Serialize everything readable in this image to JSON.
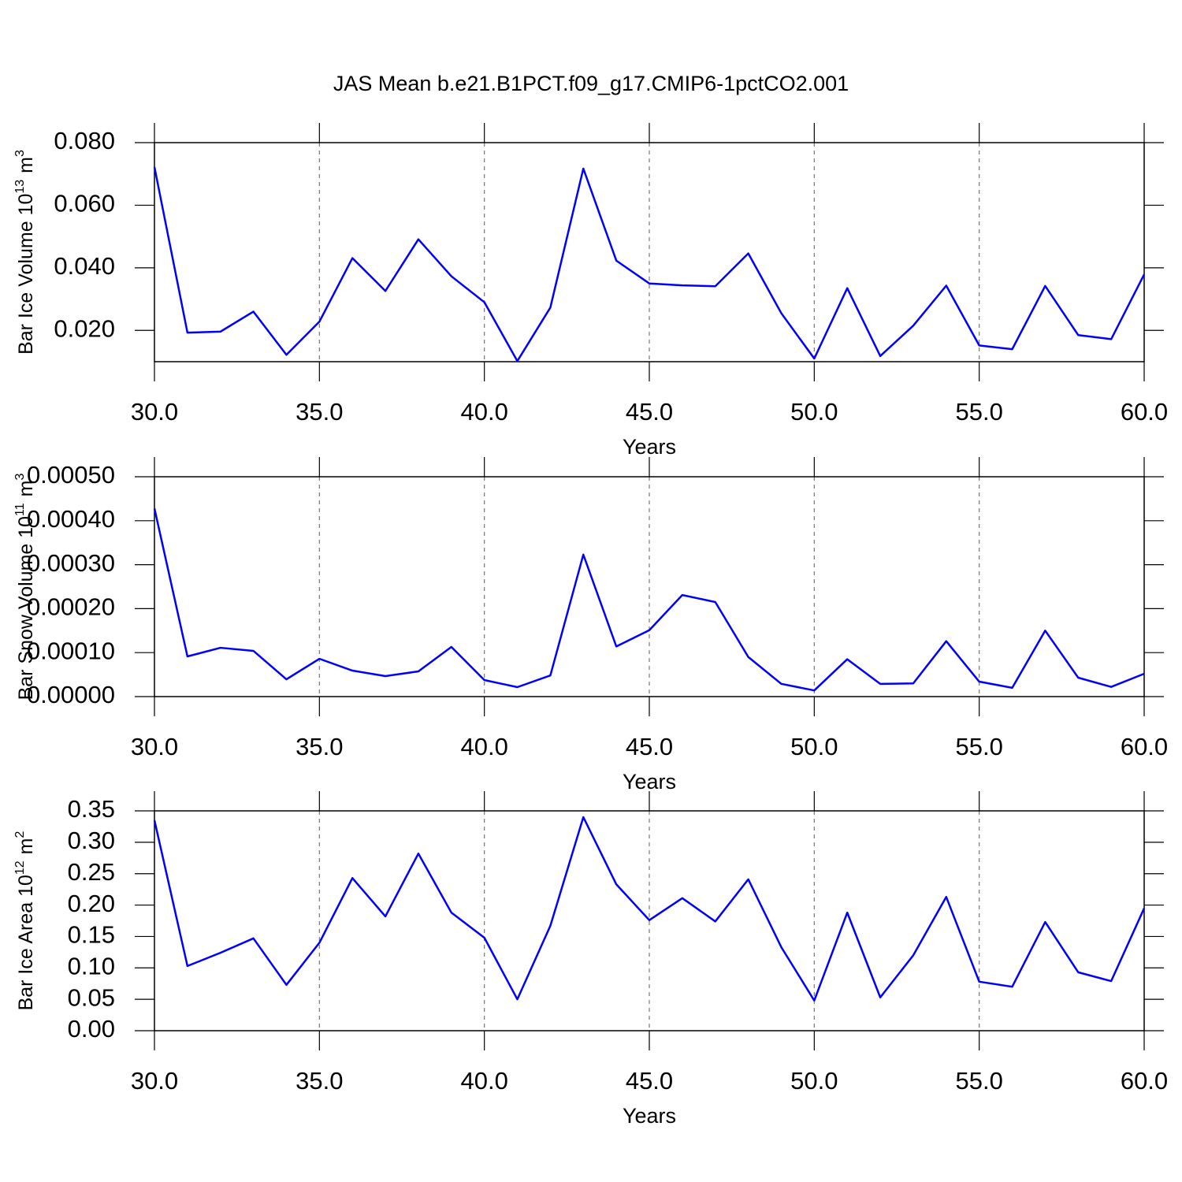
{
  "chart_data": [
    {
      "type": "line",
      "title": "JAS Mean b.e21.B1PCT.f09_g17.CMIP6-1pctCO2.001",
      "ylabel": {
        "text": "Bar Ice Volume 10",
        "exp": "13",
        "unit": "m",
        "unit_exp": "3"
      },
      "xlabel": "Years",
      "x": [
        30,
        31,
        32,
        33,
        34,
        35,
        36,
        37,
        38,
        39,
        40,
        41,
        42,
        43,
        44,
        45,
        46,
        47,
        48,
        49,
        50,
        51,
        52,
        53,
        54,
        55,
        56,
        57,
        58,
        59,
        60
      ],
      "series": [
        {
          "color": "#0000ff",
          "values": [
            0.0722,
            0.0193,
            0.0196,
            0.026,
            0.0122,
            0.0228,
            0.0431,
            0.0326,
            0.0491,
            0.0373,
            0.029,
            0.0102,
            0.0273,
            0.0717,
            0.0423,
            0.035,
            0.0344,
            0.0341,
            0.0446,
            0.0255,
            0.011,
            0.0335,
            0.0118,
            0.0215,
            0.0343,
            0.0152,
            0.014,
            0.0342,
            0.0185,
            0.0172,
            0.0379
          ]
        }
      ],
      "xlim": [
        30,
        60
      ],
      "xticks": [
        {
          "value": 30,
          "label": "30.0"
        },
        {
          "value": 35,
          "label": "35.0"
        },
        {
          "value": 40,
          "label": "40.0"
        },
        {
          "value": 45,
          "label": "45.0"
        },
        {
          "value": 50,
          "label": "50.0"
        },
        {
          "value": 55,
          "label": "55.0"
        },
        {
          "value": 60,
          "label": "60.0"
        }
      ],
      "ylim": [
        0.01,
        0.08
      ],
      "yticks": [
        {
          "value": 0.02,
          "label": "0.020"
        },
        {
          "value": 0.04,
          "label": "0.040"
        },
        {
          "value": 0.06,
          "label": "0.060"
        },
        {
          "value": 0.08,
          "label": "0.080"
        }
      ],
      "grid": "x-dashed"
    },
    {
      "type": "line",
      "ylabel": {
        "text": "Bar Snow Volume 10",
        "exp": "11",
        "unit": "m",
        "unit_exp": "3"
      },
      "xlabel": "Years",
      "x": [
        30,
        31,
        32,
        33,
        34,
        35,
        36,
        37,
        38,
        39,
        40,
        41,
        42,
        43,
        44,
        45,
        46,
        47,
        48,
        49,
        50,
        51,
        52,
        53,
        54,
        55,
        56,
        57,
        58,
        59,
        60
      ],
      "series": [
        {
          "color": "#0000ff",
          "values": [
            0.000428,
            9.14e-05,
            0.000111,
            0.000104,
            3.94e-05,
            8.6e-05,
            5.91e-05,
            4.66e-05,
            5.73e-05,
            0.000113,
            3.76e-05,
            2.15e-05,
            4.8e-05,
            0.000323,
            0.000114,
            0.000151,
            0.000231,
            0.000215,
            9e-05,
            2.9e-05,
            1.4e-05,
            8.5e-05,
            2.9e-05,
            3e-05,
            0.000126,
            3.4e-05,
            2e-05,
            0.00015,
            4.3e-05,
            2.2e-05,
            5.2e-05
          ]
        }
      ],
      "xlim": [
        30,
        60
      ],
      "xticks": [
        {
          "value": 30,
          "label": "30.0"
        },
        {
          "value": 35,
          "label": "35.0"
        },
        {
          "value": 40,
          "label": "40.0"
        },
        {
          "value": 45,
          "label": "45.0"
        },
        {
          "value": 50,
          "label": "50.0"
        },
        {
          "value": 55,
          "label": "55.0"
        },
        {
          "value": 60,
          "label": "60.0"
        }
      ],
      "ylim": [
        0,
        0.0005
      ],
      "yticks": [
        {
          "value": 0,
          "label": "0.00000"
        },
        {
          "value": 0.0001,
          "label": "0.00010"
        },
        {
          "value": 0.0002,
          "label": "0.00020"
        },
        {
          "value": 0.0003,
          "label": "0.00030"
        },
        {
          "value": 0.0004,
          "label": "0.00040"
        },
        {
          "value": 0.0005,
          "label": "0.00050"
        }
      ],
      "grid": "x-dashed"
    },
    {
      "type": "line",
      "ylabel": {
        "text": "Bar Ice Area 10",
        "exp": "12",
        "unit": "m",
        "unit_exp": "2"
      },
      "xlabel": "Years",
      "x": [
        30,
        31,
        32,
        33,
        34,
        35,
        36,
        37,
        38,
        39,
        40,
        41,
        42,
        43,
        44,
        45,
        46,
        47,
        48,
        49,
        50,
        51,
        52,
        53,
        54,
        55,
        56,
        57,
        58,
        59,
        60
      ],
      "series": [
        {
          "color": "#0000ff",
          "values": [
            0.335,
            0.103,
            0.124,
            0.147,
            0.073,
            0.14,
            0.243,
            0.182,
            0.282,
            0.188,
            0.148,
            0.05,
            0.167,
            0.34,
            0.233,
            0.176,
            0.211,
            0.174,
            0.241,
            0.133,
            0.048,
            0.188,
            0.053,
            0.12,
            0.213,
            0.078,
            0.07,
            0.173,
            0.093,
            0.079,
            0.195
          ]
        }
      ],
      "xlim": [
        30,
        60
      ],
      "xticks": [
        {
          "value": 30,
          "label": "30.0"
        },
        {
          "value": 35,
          "label": "35.0"
        },
        {
          "value": 40,
          "label": "40.0"
        },
        {
          "value": 45,
          "label": "45.0"
        },
        {
          "value": 50,
          "label": "50.0"
        },
        {
          "value": 55,
          "label": "55.0"
        },
        {
          "value": 60,
          "label": "60.0"
        }
      ],
      "ylim": [
        0,
        0.35
      ],
      "yticks": [
        {
          "value": 0,
          "label": "0.00"
        },
        0.05,
        {
          "value": 0.1,
          "label": "0.10"
        },
        0.15,
        {
          "value": 0.2,
          "label": "0.20"
        },
        0.25,
        {
          "value": 0.3,
          "label": "0.30"
        },
        0.35
      ],
      "grid": "x-dashed"
    }
  ]
}
